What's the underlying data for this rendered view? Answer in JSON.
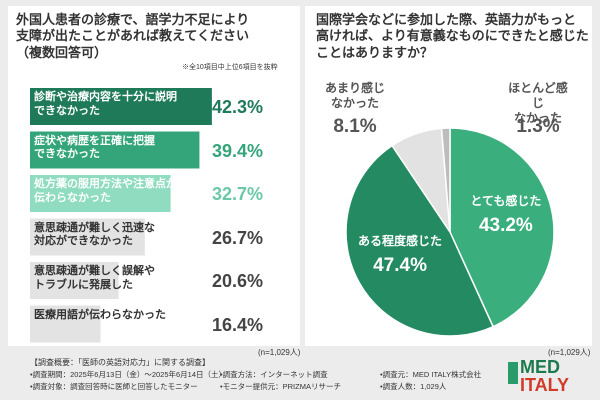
{
  "chart_data": [
    {
      "type": "hbar",
      "title": "外国人患者の診療で、語学力不足により\n支障が出たことがあれば教えてください\n（複数回答可）",
      "note": "※全10項目中上位6項目を抜粋",
      "categories": [
        "診断や治療内容を十分に説明\nできなかった",
        "症状や病歴を正確に把握\nできなかった",
        "処方薬の服用方法や注意点が\n伝わらなかった",
        "意思疎通が難しく迅速な\n対応ができなかった",
        "意思疎通が難しく誤解や\nトラブルに発展した",
        "医療用語が伝わらなかった"
      ],
      "values": [
        42.3,
        39.4,
        32.7,
        26.7,
        20.6,
        16.4
      ],
      "value_labels": [
        "42.3%",
        "39.4%",
        "32.7%",
        "26.7%",
        "20.6%",
        "16.4%"
      ],
      "colors": [
        "#1f7a5a",
        "#34a57a",
        "#8fdcc0",
        "#e3e3e3",
        "#e3e3e3",
        "#e3e3e3"
      ],
      "sample": "(n=1,029人)"
    },
    {
      "type": "pie",
      "title": "国際学会などに参加した際、英語力がもっと\n高ければ、より有意義なものにできたと感じた\nことはありますか？",
      "categories": [
        "とても感じた",
        "ある程度感じた",
        "あまり感じ\nなかった",
        "ほとんど感じ\nなかった"
      ],
      "values": [
        43.2,
        47.4,
        8.1,
        1.3
      ],
      "value_labels": [
        "43.2%",
        "47.4%",
        "8.1%",
        "1.3%"
      ],
      "colors": [
        "#3aae7c",
        "#238a62",
        "#e2e2e2",
        "#bdbdbd"
      ],
      "sample": "(n=1,029人)"
    }
  ],
  "footer": {
    "heading": "【調査概要：「医師の英語対応力」に関する調査】",
    "items": [
      "•調査期間：2025年6月13日（金）〜2025年6月14日（土）",
      "•調査方法：インターネット調査",
      "•調査元：MED ITALY株式会社",
      "•調査対象：調査回答時に医師と回答したモニター",
      "•モニター提供元：PRIZMAリサーチ",
      "•調査人数：1,029人"
    ]
  },
  "logo": {
    "top": "MED",
    "bottom": "ITALY"
  }
}
